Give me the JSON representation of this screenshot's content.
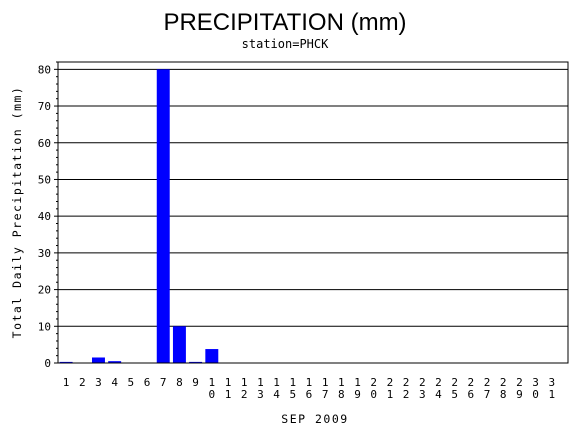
{
  "chart_data": {
    "type": "bar",
    "title": "PRECIPITATION (mm)",
    "subtitle": "station=PHCK",
    "xlabel": "SEP 2009",
    "ylabel": "Total Daily Precipitation (mm)",
    "ylim": [
      0,
      82
    ],
    "yticks": [
      0,
      10,
      20,
      30,
      40,
      50,
      60,
      70,
      80
    ],
    "grid": true,
    "bar_color": "#0000ff",
    "categories": [
      "1",
      "2",
      "3",
      "4",
      "5",
      "6",
      "7",
      "8",
      "9",
      "10",
      "11",
      "12",
      "13",
      "14",
      "15",
      "16",
      "17",
      "18",
      "19",
      "20",
      "21",
      "22",
      "23",
      "24",
      "25",
      "26",
      "27",
      "28",
      "29",
      "30",
      "31"
    ],
    "values": [
      0.3,
      0,
      1.5,
      0.5,
      0,
      0,
      80,
      10,
      0.3,
      3.8,
      0,
      0,
      0,
      0,
      0,
      0,
      0,
      0,
      0,
      0,
      0,
      0,
      0,
      0,
      0,
      0,
      0,
      0,
      0,
      0,
      0
    ]
  }
}
